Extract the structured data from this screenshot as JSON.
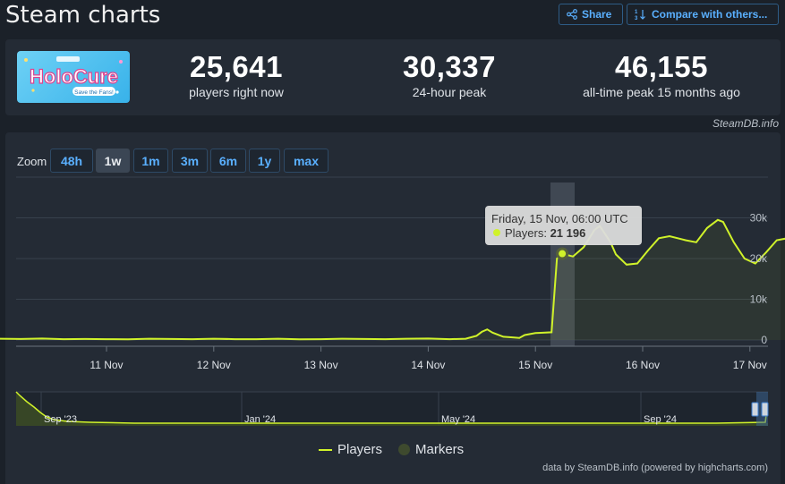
{
  "header": {
    "title": "Steam charts",
    "share_label": "Share",
    "compare_label": "Compare with others..."
  },
  "stats": {
    "logo_text": "HoloCure",
    "logo_sub": "Save the Fans!",
    "now_value": "25,641",
    "now_label": "players right now",
    "peak24_value": "30,337",
    "peak24_label": "24-hour peak",
    "alltime_value": "46,155",
    "alltime_label": "all-time peak 15 months ago"
  },
  "credit": "SteamDB.info",
  "zoom": {
    "label": "Zoom",
    "buttons": [
      "48h",
      "1w",
      "1m",
      "3m",
      "6m",
      "1y",
      "max"
    ],
    "active": "1w"
  },
  "tooltip": {
    "title": "Friday, 15 Nov, 06:00 UTC",
    "series_label": "Players: ",
    "value": "21 196"
  },
  "legend": {
    "players": "Players",
    "markers": "Markers"
  },
  "footnote": "data by SteamDB.info (powered by highcharts.com)",
  "colors": {
    "line": "#d0f22a",
    "accent": "#5ab0ff",
    "grid": "#38414d"
  },
  "chart_data": {
    "type": "line",
    "x_unit": "days since 10 Nov 00:00",
    "x_ticks": [
      "11 Nov",
      "12 Nov",
      "13 Nov",
      "14 Nov",
      "15 Nov",
      "16 Nov",
      "17 Nov"
    ],
    "y_ticks": [
      "0",
      "10k",
      "20k",
      "30k"
    ],
    "ylim": [
      0,
      40000
    ],
    "series": [
      {
        "name": "Players",
        "points": [
          [
            0.0,
            300
          ],
          [
            0.2,
            250
          ],
          [
            0.4,
            350
          ],
          [
            0.6,
            200
          ],
          [
            0.8,
            250
          ],
          [
            1.0,
            200
          ],
          [
            1.2,
            150
          ],
          [
            1.4,
            300
          ],
          [
            1.6,
            250
          ],
          [
            1.8,
            200
          ],
          [
            2.0,
            300
          ],
          [
            2.2,
            200
          ],
          [
            2.4,
            200
          ],
          [
            2.6,
            300
          ],
          [
            2.8,
            150
          ],
          [
            3.0,
            200
          ],
          [
            3.2,
            300
          ],
          [
            3.4,
            250
          ],
          [
            3.6,
            200
          ],
          [
            3.8,
            300
          ],
          [
            4.0,
            350
          ],
          [
            4.2,
            200
          ],
          [
            4.35,
            300
          ],
          [
            4.45,
            1000
          ],
          [
            4.5,
            2000
          ],
          [
            4.55,
            2600
          ],
          [
            4.6,
            1800
          ],
          [
            4.7,
            800
          ],
          [
            4.8,
            600
          ],
          [
            4.85,
            500
          ],
          [
            4.9,
            1200
          ],
          [
            5.0,
            1700
          ],
          [
            5.05,
            1750
          ],
          [
            5.15,
            1900
          ],
          [
            5.2,
            20000
          ],
          [
            5.25,
            21196
          ],
          [
            5.35,
            20500
          ],
          [
            5.45,
            22800
          ],
          [
            5.55,
            27000
          ],
          [
            5.6,
            28000
          ],
          [
            5.7,
            24000
          ],
          [
            5.75,
            21000
          ],
          [
            5.85,
            18500
          ],
          [
            5.95,
            18800
          ],
          [
            6.05,
            22000
          ],
          [
            6.15,
            25000
          ],
          [
            6.25,
            25500
          ],
          [
            6.4,
            24500
          ],
          [
            6.5,
            24000
          ],
          [
            6.6,
            27500
          ],
          [
            6.7,
            29500
          ],
          [
            6.75,
            29000
          ],
          [
            6.85,
            24000
          ],
          [
            6.95,
            20000
          ],
          [
            7.05,
            18800
          ],
          [
            7.15,
            21500
          ],
          [
            7.25,
            24500
          ],
          [
            7.35,
            25000
          ],
          [
            7.42,
            24000
          ]
        ]
      }
    ],
    "navigator": {
      "x_ticks": [
        "Sep '23",
        "Jan '24",
        "May '24",
        "Sep '24"
      ]
    }
  }
}
